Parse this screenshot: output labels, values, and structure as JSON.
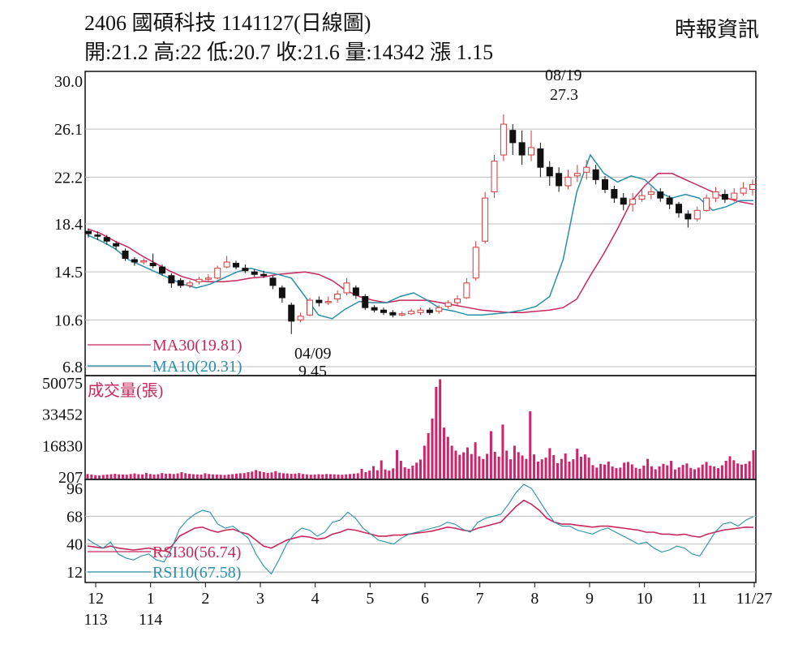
{
  "header": {
    "title": "2406 國碩科技 1141127(日線圖)",
    "stats": "開:21.2 高:22 低:20.7 收:21.6 量:14342 漲 1.15",
    "source": "時報資訊"
  },
  "chart_data": [
    {
      "type": "candlestick",
      "panel": "price",
      "y_ticks": [
        "30.0",
        "26.1",
        "22.2",
        "18.4",
        "14.5",
        "10.6",
        "6.8"
      ],
      "ylim": [
        6.8,
        30.0
      ],
      "grid": true,
      "annotations": [
        {
          "date_label": "08/19",
          "value_label": "27.3",
          "value": 27.3,
          "kind": "high"
        },
        {
          "date_label": "04/09",
          "value_label": "9.45",
          "value": 9.45,
          "kind": "low"
        }
      ],
      "series": [
        {
          "name": "MA30(19.81)",
          "color": "#c8285a",
          "values": [
            18.0,
            17.6,
            17.0,
            16.5,
            15.8,
            15.2,
            14.6,
            14.1,
            13.8,
            13.7,
            13.7,
            13.8,
            14.0,
            14.1,
            14.3,
            14.4,
            14.5,
            14.3,
            13.8,
            13.0,
            12.5,
            12.2,
            12.0,
            12.2,
            12.2,
            12.2,
            12.0,
            11.8,
            11.6,
            11.4,
            11.3,
            11.2,
            11.2,
            11.3,
            11.4,
            11.6,
            12.3,
            14.2,
            16.0,
            18.0,
            20.2,
            21.5,
            22.5,
            22.5,
            22.0,
            21.5,
            21.0,
            20.5,
            20.2,
            20.0
          ]
        },
        {
          "name": "MA10(20.31)",
          "color": "#2a8fa8",
          "values": [
            17.5,
            17.0,
            16.4,
            15.5,
            15.0,
            14.5,
            14.0,
            13.5,
            13.2,
            13.5,
            14.0,
            14.5,
            14.8,
            14.5,
            14.3,
            14.0,
            12.5,
            11.0,
            10.7,
            11.5,
            12.1,
            12.0,
            12.0,
            12.5,
            12.8,
            12.2,
            11.5,
            11.3,
            11.0,
            11.0,
            11.1,
            11.2,
            11.4,
            11.7,
            12.5,
            15.5,
            21.0,
            24.0,
            22.5,
            21.8,
            22.3,
            22.0,
            21.0,
            20.5,
            20.8,
            20.5,
            19.5,
            19.8,
            20.3,
            20.3
          ]
        }
      ],
      "candles": [
        [
          17.8,
          17.6,
          18.0,
          17.3
        ],
        [
          17.5,
          17.4,
          17.8,
          17.1
        ],
        [
          17.3,
          17.0,
          17.5,
          16.7
        ],
        [
          16.8,
          16.6,
          17.0,
          16.3
        ],
        [
          16.2,
          15.6,
          16.4,
          15.4
        ],
        [
          15.5,
          15.3,
          15.7,
          15.0
        ],
        [
          15.3,
          15.4,
          15.6,
          15.1
        ],
        [
          15.2,
          15.0,
          16.0,
          14.8
        ],
        [
          14.9,
          14.4,
          15.1,
          14.2
        ],
        [
          14.2,
          13.6,
          14.4,
          13.2
        ],
        [
          13.8,
          13.4,
          14.0,
          13.2
        ],
        [
          13.4,
          13.6,
          13.8,
          13.2
        ],
        [
          13.7,
          13.9,
          14.1,
          13.5
        ],
        [
          13.9,
          14.0,
          14.3,
          13.7
        ],
        [
          14.0,
          14.8,
          15.0,
          13.9
        ],
        [
          14.9,
          15.3,
          15.8,
          14.8
        ],
        [
          15.2,
          14.9,
          15.4,
          14.7
        ],
        [
          14.8,
          14.6,
          15.1,
          14.4
        ],
        [
          14.5,
          14.3,
          14.7,
          14.1
        ],
        [
          14.3,
          14.2,
          14.6,
          14.0
        ],
        [
          14.0,
          13.4,
          14.2,
          13.1
        ],
        [
          13.2,
          12.4,
          13.4,
          12.0
        ],
        [
          11.8,
          10.5,
          12.0,
          9.45
        ],
        [
          10.6,
          10.9,
          11.2,
          10.4
        ],
        [
          11.0,
          12.2,
          12.4,
          10.9
        ],
        [
          12.2,
          12.0,
          12.5,
          11.7
        ],
        [
          12.0,
          12.1,
          12.5,
          11.8
        ],
        [
          12.3,
          12.7,
          13.0,
          12.0
        ],
        [
          12.8,
          13.6,
          14.0,
          12.6
        ],
        [
          13.2,
          12.6,
          13.4,
          12.3
        ],
        [
          12.5,
          11.6,
          12.7,
          11.4
        ],
        [
          11.6,
          11.4,
          11.8,
          11.2
        ],
        [
          11.4,
          11.2,
          11.6,
          11.0
        ],
        [
          11.2,
          11.0,
          11.4,
          10.8
        ],
        [
          11.0,
          11.1,
          11.3,
          10.9
        ],
        [
          11.1,
          11.3,
          11.5,
          11.0
        ],
        [
          11.2,
          11.4,
          11.6,
          11.0
        ],
        [
          11.4,
          11.2,
          11.6,
          11.0
        ],
        [
          11.3,
          11.6,
          11.8,
          11.1
        ],
        [
          11.7,
          12.0,
          12.2,
          11.5
        ],
        [
          12.0,
          12.3,
          12.6,
          11.8
        ],
        [
          12.4,
          13.6,
          14.0,
          12.3
        ],
        [
          14.0,
          16.5,
          17.0,
          13.8
        ],
        [
          17.0,
          20.5,
          21.0,
          16.8
        ],
        [
          21.0,
          23.5,
          24.0,
          20.5
        ],
        [
          24.0,
          26.5,
          27.3,
          23.5
        ],
        [
          26.0,
          25.0,
          26.5,
          24.0
        ],
        [
          25.0,
          24.0,
          26.0,
          23.2
        ],
        [
          24.0,
          24.6,
          26.0,
          23.5
        ],
        [
          24.5,
          23.0,
          25.0,
          22.2
        ],
        [
          23.0,
          22.3,
          23.5,
          21.5
        ],
        [
          22.5,
          21.5,
          23.0,
          21.0
        ],
        [
          21.5,
          22.2,
          22.8,
          21.2
        ],
        [
          22.3,
          22.5,
          23.2,
          21.8
        ],
        [
          22.6,
          23.0,
          23.6,
          22.0
        ],
        [
          22.8,
          22.0,
          23.2,
          21.6
        ],
        [
          22.0,
          21.2,
          22.3,
          20.9
        ],
        [
          21.2,
          20.5,
          21.5,
          20.1
        ],
        [
          20.5,
          20.0,
          20.9,
          19.5
        ],
        [
          20.0,
          20.4,
          20.9,
          19.4
        ],
        [
          20.4,
          20.7,
          21.2,
          20.2
        ],
        [
          20.8,
          21.0,
          21.4,
          20.4
        ],
        [
          21.0,
          20.5,
          21.3,
          20.2
        ],
        [
          20.5,
          20.0,
          20.7,
          19.6
        ],
        [
          20.0,
          19.3,
          20.2,
          18.9
        ],
        [
          19.2,
          18.8,
          19.5,
          18.1
        ],
        [
          18.8,
          19.5,
          19.8,
          18.6
        ],
        [
          19.5,
          20.5,
          20.8,
          19.4
        ],
        [
          20.5,
          21.0,
          21.4,
          20.2
        ],
        [
          20.8,
          20.4,
          21.2,
          20.1
        ],
        [
          20.4,
          20.9,
          21.3,
          20.2
        ],
        [
          20.9,
          21.3,
          21.8,
          20.7
        ],
        [
          21.2,
          21.6,
          22.0,
          20.7
        ]
      ]
    },
    {
      "type": "bar",
      "panel": "volume",
      "title": "成交量(張)",
      "y_ticks": [
        "50075",
        "33452",
        "16830",
        "207"
      ],
      "ylim": [
        207,
        50075
      ],
      "values": [
        1800,
        1500,
        1200,
        1000,
        1300,
        1500,
        1700,
        1900,
        1600,
        1500,
        1400,
        1800,
        2100,
        1700,
        1600,
        2400,
        1800,
        1500,
        1700,
        2300,
        1900,
        2000,
        1800,
        2100,
        2800,
        2200,
        1900,
        1700,
        1600,
        1500,
        2200,
        1800,
        1600,
        1500,
        1400,
        1300,
        1500,
        1700,
        2000,
        2200,
        2300,
        2800,
        3100,
        3900,
        3200,
        2800,
        2400,
        2600,
        3300,
        2500,
        2200,
        2100,
        1900,
        2000,
        2300,
        1800,
        1600,
        1400,
        1500,
        1700,
        1600,
        1800,
        1700,
        1600,
        1500,
        1400,
        1600,
        1800,
        2000,
        2200,
        4500,
        2800,
        3600,
        6000,
        3800,
        9000,
        4200,
        3600,
        4800,
        14500,
        8800,
        5400,
        4600,
        6200,
        7800,
        9500,
        16800,
        23500,
        31200,
        48000,
        52000,
        26400,
        21500,
        16800,
        14200,
        12000,
        13300,
        15900,
        12400,
        18600,
        11200,
        9800,
        12500,
        24500,
        13600,
        11000,
        28000,
        14200,
        9600,
        16800,
        13400,
        11600,
        9800,
        35000,
        12200,
        8400,
        9600,
        10500,
        15500,
        11800,
        7600,
        9800,
        12700,
        8400,
        9600,
        15200,
        11000,
        12200,
        10500,
        6500,
        5200,
        7200,
        6800,
        8400,
        5800,
        4900,
        5200,
        7800,
        8200,
        6900,
        5100,
        4600,
        6300,
        9800,
        5900,
        4300,
        5800,
        7200,
        6400,
        8800,
        4200,
        5300,
        6600,
        7400,
        5000,
        4300,
        5200,
        6800,
        8200,
        6200,
        5800,
        4900,
        6400,
        8800,
        11200,
        9100,
        7400,
        6800,
        7200,
        8600,
        14342
      ]
    },
    {
      "type": "line",
      "panel": "rsi",
      "y_ticks": [
        "96",
        "68",
        "40",
        "12"
      ],
      "ylim": [
        12,
        96
      ],
      "series": [
        {
          "name": "RSI30(56.74)",
          "color": "#c8285a",
          "values": [
            38,
            37,
            36,
            38,
            36,
            35,
            34,
            35,
            36,
            34,
            33,
            38,
            48,
            52,
            56,
            57,
            54,
            52,
            54,
            55,
            52,
            50,
            44,
            38,
            36,
            40,
            44,
            46,
            48,
            47,
            45,
            46,
            50,
            52,
            55,
            54,
            52,
            50,
            48,
            48,
            49,
            49,
            50,
            51,
            52,
            53,
            55,
            57,
            56,
            54,
            53,
            56,
            58,
            60,
            62,
            70,
            78,
            84,
            80,
            74,
            66,
            62,
            60,
            60,
            59,
            58,
            57,
            58,
            58,
            57,
            56,
            55,
            54,
            52,
            52,
            50,
            50,
            49,
            50,
            48,
            47,
            50,
            52,
            54,
            55,
            56,
            57,
            56.74
          ]
        },
        {
          "name": "RSI10(67.58)",
          "color": "#2a8fa8",
          "values": [
            45,
            40,
            36,
            42,
            30,
            26,
            24,
            28,
            30,
            24,
            22,
            36,
            55,
            64,
            70,
            74,
            72,
            60,
            56,
            58,
            52,
            46,
            30,
            18,
            10,
            24,
            40,
            50,
            56,
            54,
            48,
            52,
            62,
            64,
            72,
            66,
            56,
            50,
            44,
            42,
            40,
            46,
            50,
            52,
            54,
            56,
            58,
            62,
            60,
            55,
            52,
            62,
            66,
            68,
            70,
            80,
            92,
            100,
            96,
            84,
            72,
            62,
            58,
            58,
            54,
            52,
            50,
            54,
            56,
            52,
            48,
            44,
            40,
            42,
            36,
            32,
            34,
            38,
            36,
            30,
            28,
            40,
            52,
            60,
            62,
            58,
            64,
            67.58
          ]
        }
      ]
    }
  ],
  "legends": {
    "ma30": "MA30(19.81)",
    "ma10": "MA10(20.31)",
    "rsi30": "RSI30(56.74)",
    "rsi10": "RSI10(67.58)"
  },
  "x_axis": {
    "labels": [
      "12",
      "1",
      "2",
      "3",
      "4",
      "5",
      "6",
      "7",
      "8",
      "9",
      "10",
      "11",
      "11/27"
    ],
    "year_labels": [
      "113",
      "114"
    ]
  },
  "colors": {
    "up": "#d23a3a",
    "down": "#111111",
    "ma30": "#c8285a",
    "ma10": "#2a8fa8",
    "volume": "#d1236a",
    "grid": "#bdbdbd"
  }
}
